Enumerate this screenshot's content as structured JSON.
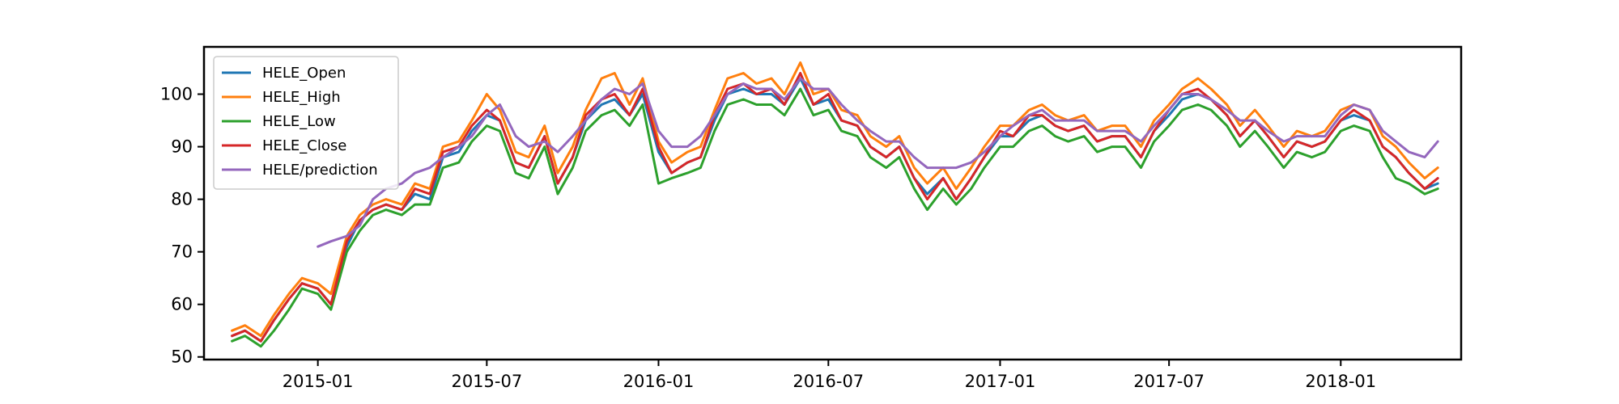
{
  "chart_data": {
    "type": "line",
    "title": "",
    "xlabel": "",
    "ylabel": "",
    "ylim": [
      49.5,
      109
    ],
    "xlim": [
      "2014-09-01",
      "2018-05-10"
    ],
    "grid": false,
    "legend_position": "top-left",
    "x_ticks": [
      "2015-01",
      "2015-07",
      "2016-01",
      "2016-07",
      "2017-01",
      "2017-07",
      "2018-01"
    ],
    "y_ticks": [
      50,
      60,
      70,
      80,
      90,
      100
    ],
    "x": [
      "2014-10-01",
      "2014-10-15",
      "2014-11-01",
      "2014-11-15",
      "2014-12-01",
      "2014-12-15",
      "2015-01-01",
      "2015-01-15",
      "2015-02-01",
      "2015-02-15",
      "2015-03-01",
      "2015-03-15",
      "2015-04-01",
      "2015-04-15",
      "2015-05-01",
      "2015-05-15",
      "2015-06-01",
      "2015-06-15",
      "2015-07-01",
      "2015-07-15",
      "2015-08-01",
      "2015-08-15",
      "2015-09-01",
      "2015-09-15",
      "2015-10-01",
      "2015-10-15",
      "2015-11-01",
      "2015-11-15",
      "2015-12-01",
      "2015-12-15",
      "2016-01-01",
      "2016-01-15",
      "2016-02-01",
      "2016-02-15",
      "2016-03-01",
      "2016-03-15",
      "2016-04-01",
      "2016-04-15",
      "2016-05-01",
      "2016-05-15",
      "2016-06-01",
      "2016-06-15",
      "2016-07-01",
      "2016-07-15",
      "2016-08-01",
      "2016-08-15",
      "2016-09-01",
      "2016-09-15",
      "2016-10-01",
      "2016-10-15",
      "2016-11-01",
      "2016-11-15",
      "2016-12-01",
      "2016-12-15",
      "2017-01-01",
      "2017-01-15",
      "2017-02-01",
      "2017-02-15",
      "2017-03-01",
      "2017-03-15",
      "2017-04-01",
      "2017-04-15",
      "2017-05-01",
      "2017-05-15",
      "2017-06-01",
      "2017-06-15",
      "2017-07-01",
      "2017-07-15",
      "2017-08-01",
      "2017-08-15",
      "2017-09-01",
      "2017-09-15",
      "2017-10-01",
      "2017-10-15",
      "2017-11-01",
      "2017-11-15",
      "2017-12-01",
      "2017-12-15",
      "2018-01-01",
      "2018-01-15",
      "2018-02-01",
      "2018-02-15",
      "2018-03-01",
      "2018-03-15",
      "2018-04-01",
      "2018-04-15"
    ],
    "series": [
      {
        "name": "HELE_Open",
        "color": "#1f77b4",
        "values": [
          54,
          55,
          53,
          57,
          61,
          64,
          63,
          60,
          71,
          76,
          78,
          79,
          78,
          81,
          80,
          88,
          89,
          93,
          96,
          95,
          87,
          86,
          92,
          83,
          88,
          95,
          98,
          99,
          96,
          100,
          89,
          85,
          87,
          88,
          95,
          100,
          101,
          100,
          100,
          98,
          103,
          98,
          99,
          95,
          94,
          90,
          88,
          90,
          84,
          81,
          84,
          80,
          84,
          88,
          92,
          92,
          95,
          96,
          94,
          93,
          94,
          91,
          92,
          92,
          88,
          93,
          96,
          99,
          100,
          99,
          96,
          92,
          95,
          92,
          88,
          91,
          90,
          91,
          95,
          96,
          95,
          90,
          88,
          85,
          82,
          83
        ]
      },
      {
        "name": "HELE_High",
        "color": "#ff7f0e",
        "values": [
          55,
          56,
          54,
          58,
          62,
          65,
          64,
          62,
          73,
          77,
          79,
          80,
          79,
          83,
          82,
          90,
          91,
          95,
          100,
          97,
          89,
          88,
          94,
          85,
          90,
          97,
          103,
          104,
          98,
          103,
          91,
          87,
          89,
          90,
          97,
          103,
          104,
          102,
          103,
          100,
          106,
          100,
          101,
          97,
          96,
          92,
          90,
          92,
          86,
          83,
          86,
          82,
          86,
          90,
          94,
          94,
          97,
          98,
          96,
          95,
          96,
          93,
          94,
          94,
          90,
          95,
          98,
          101,
          103,
          101,
          98,
          94,
          97,
          94,
          90,
          93,
          92,
          93,
          97,
          98,
          97,
          92,
          90,
          87,
          84,
          86
        ]
      },
      {
        "name": "HELE_Low",
        "color": "#2ca02c",
        "values": [
          53,
          54,
          52,
          55,
          59,
          63,
          62,
          59,
          70,
          74,
          77,
          78,
          77,
          79,
          79,
          86,
          87,
          91,
          94,
          93,
          85,
          84,
          90,
          81,
          86,
          93,
          96,
          97,
          94,
          98,
          83,
          84,
          85,
          86,
          93,
          98,
          99,
          98,
          98,
          96,
          101,
          96,
          97,
          93,
          92,
          88,
          86,
          88,
          82,
          78,
          82,
          79,
          82,
          86,
          90,
          90,
          93,
          94,
          92,
          91,
          92,
          89,
          90,
          90,
          86,
          91,
          94,
          97,
          98,
          97,
          94,
          90,
          93,
          90,
          86,
          89,
          88,
          89,
          93,
          94,
          93,
          88,
          84,
          83,
          81,
          82
        ]
      },
      {
        "name": "HELE_Close",
        "color": "#d62728",
        "values": [
          54,
          55,
          53,
          57,
          61,
          64,
          63,
          60,
          72,
          76,
          78,
          79,
          78,
          82,
          81,
          89,
          90,
          94,
          97,
          95,
          87,
          86,
          92,
          83,
          88,
          96,
          99,
          100,
          96,
          101,
          90,
          85,
          87,
          88,
          96,
          101,
          102,
          100,
          101,
          98,
          104,
          98,
          100,
          95,
          94,
          90,
          88,
          90,
          84,
          80,
          84,
          80,
          84,
          88,
          93,
          92,
          96,
          96,
          94,
          93,
          94,
          91,
          92,
          92,
          88,
          93,
          97,
          100,
          101,
          99,
          96,
          92,
          95,
          92,
          88,
          91,
          90,
          91,
          95,
          97,
          95,
          90,
          88,
          85,
          82,
          84
        ]
      },
      {
        "name": "HELE/prediction",
        "color": "#9467bd",
        "values": [
          null,
          null,
          null,
          null,
          null,
          null,
          71,
          72,
          73,
          75,
          80,
          82,
          83,
          85,
          86,
          88,
          90,
          92,
          96,
          98,
          92,
          90,
          91,
          89,
          92,
          95,
          99,
          101,
          100,
          102,
          93,
          90,
          90,
          92,
          96,
          100,
          102,
          101,
          101,
          99,
          103,
          101,
          101,
          98,
          95,
          93,
          91,
          91,
          88,
          86,
          86,
          86,
          87,
          89,
          92,
          94,
          96,
          97,
          95,
          95,
          95,
          93,
          93,
          93,
          91,
          94,
          97,
          100,
          100,
          99,
          97,
          95,
          95,
          93,
          91,
          92,
          92,
          92,
          96,
          98,
          97,
          93,
          91,
          89,
          88,
          91
        ]
      }
    ]
  }
}
